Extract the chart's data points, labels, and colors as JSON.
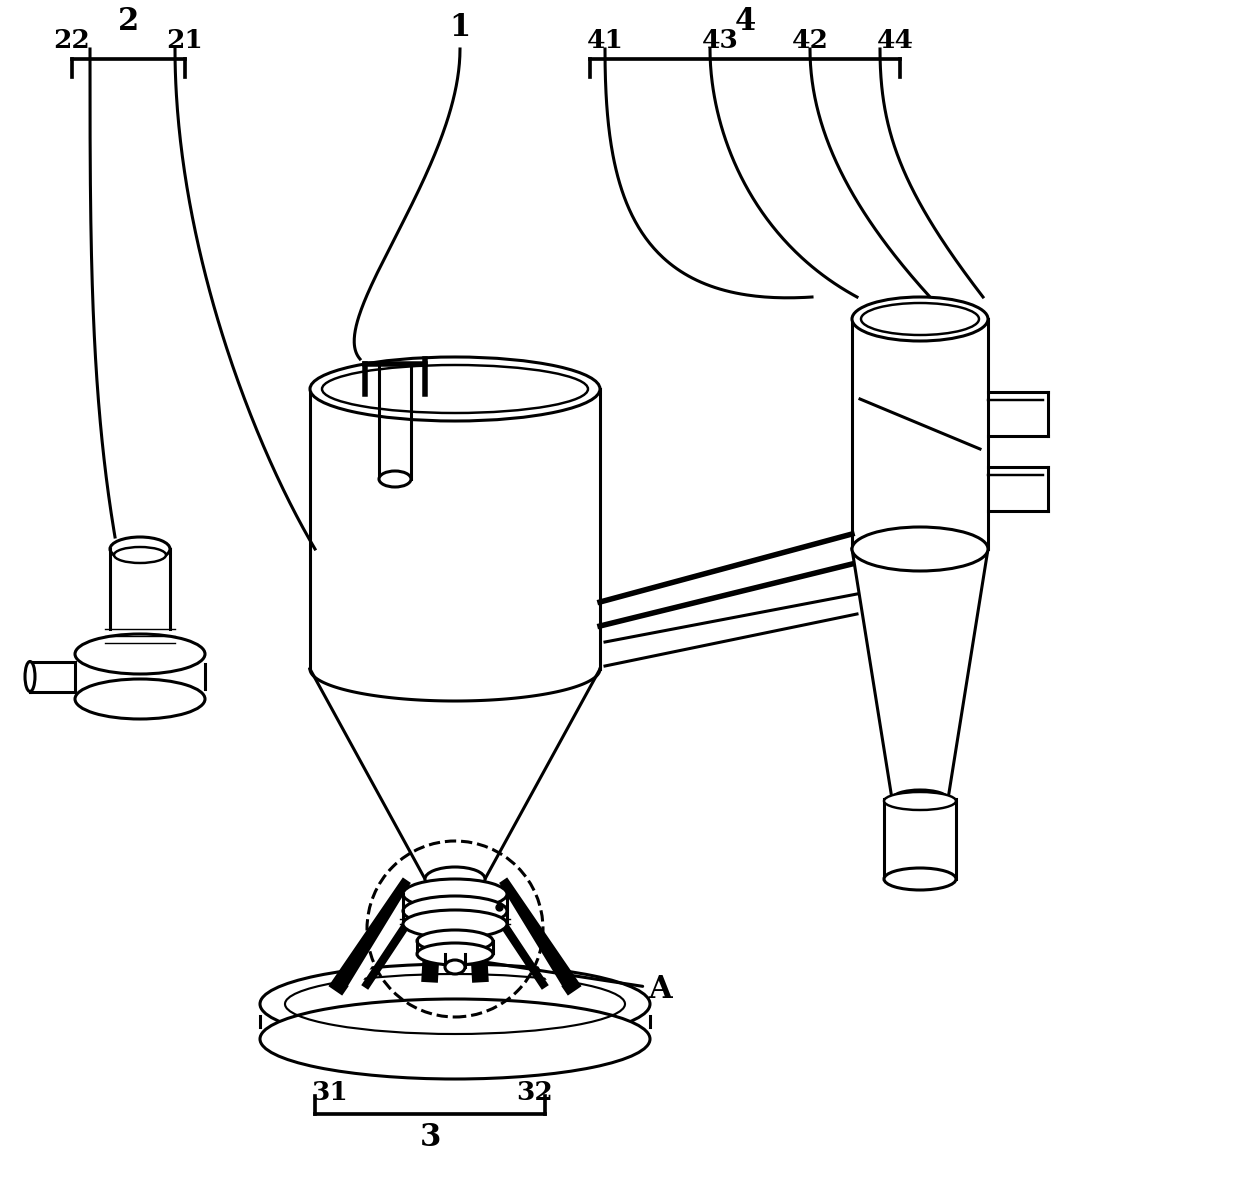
{
  "background": "#ffffff",
  "lc": "#000000",
  "lw": 2.2,
  "fig_w": 12.4,
  "fig_h": 11.89,
  "xlim": [
    0,
    1240
  ],
  "ylim": [
    0,
    1189
  ]
}
